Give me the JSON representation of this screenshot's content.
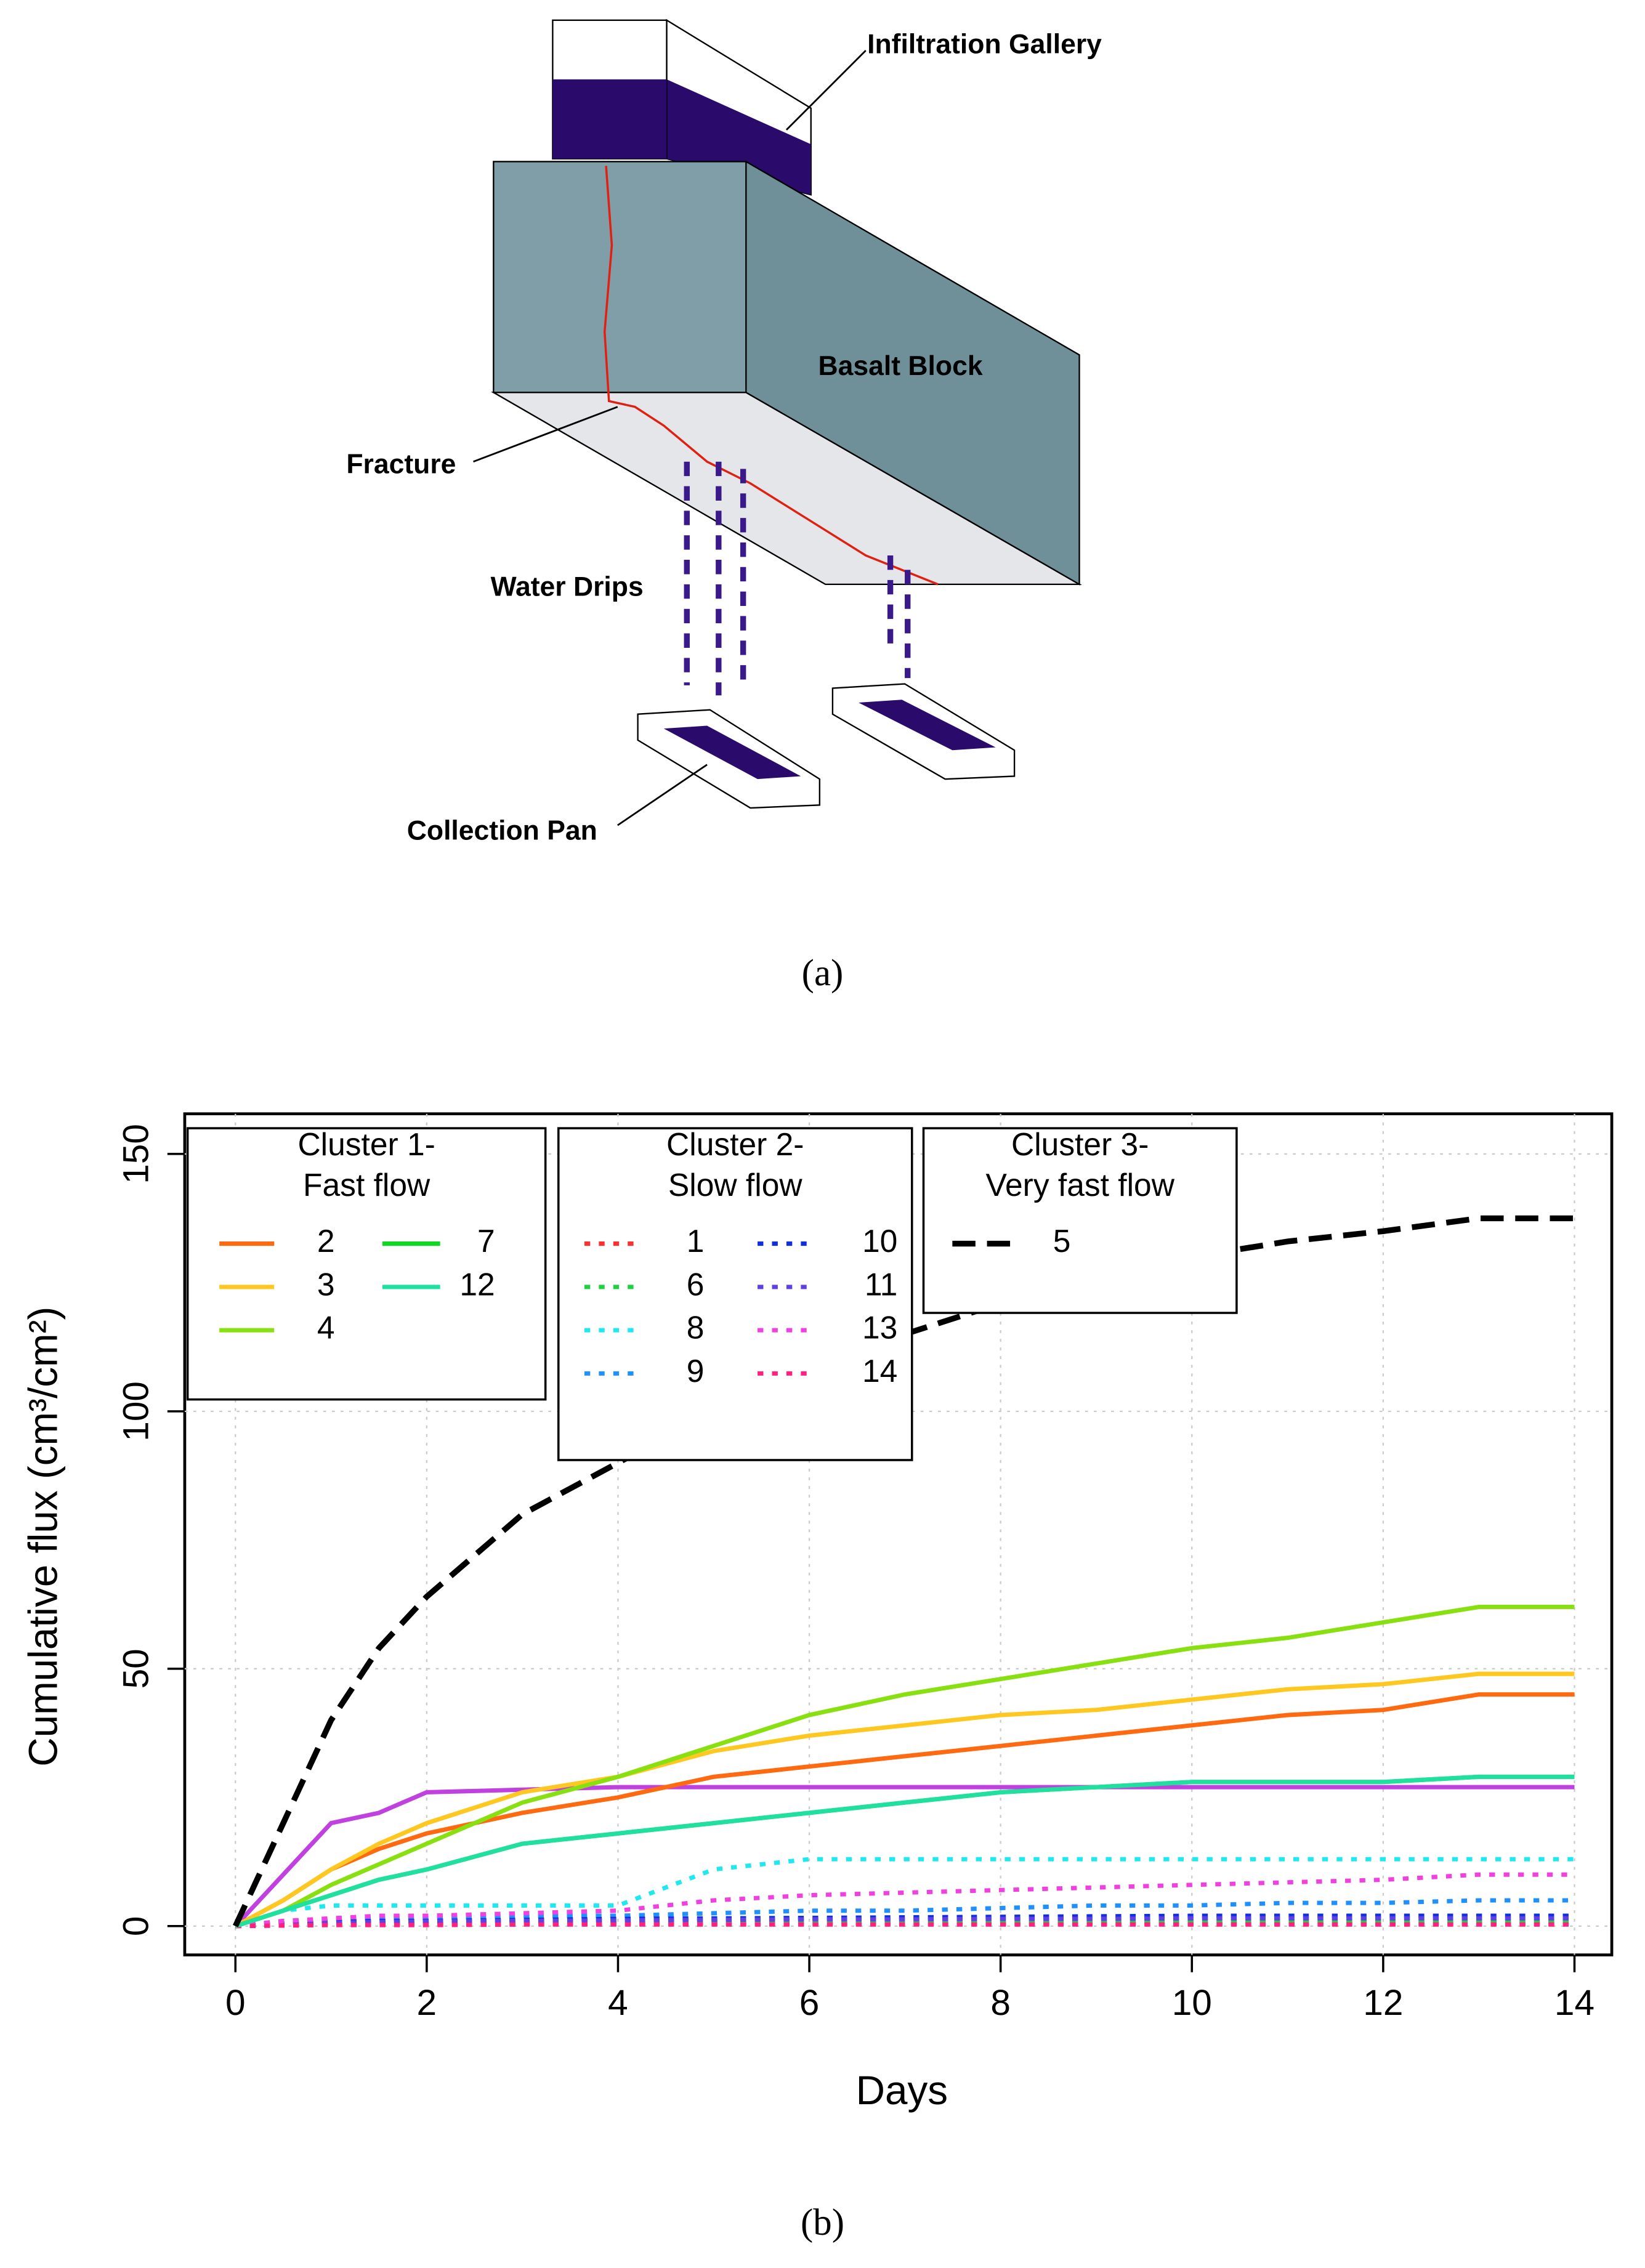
{
  "diagram": {
    "labels": [
      "Infiltration Gallery",
      "Basalt Block",
      "Fracture",
      "Water Drips",
      "Collection Pan"
    ],
    "caption": "(a)"
  },
  "chart_data": {
    "type": "line",
    "caption": "(b)",
    "xlabel": "Days",
    "ylabel": "Cumulative flux (cm³/cm²)",
    "x": [
      0,
      0.5,
      1,
      1.5,
      2,
      3,
      4,
      5,
      6,
      7,
      8,
      9,
      10,
      11,
      12,
      13,
      14
    ],
    "xlim": [
      -0.53,
      14.39
    ],
    "ylim": [
      -5.6,
      157.8
    ],
    "xticks": [
      0,
      2,
      4,
      6,
      8,
      10,
      12,
      14
    ],
    "yticks": [
      0,
      50,
      100,
      150
    ],
    "grid": true,
    "groups": [
      {
        "title": [
          "Cluster 1-",
          "Fast flow"
        ],
        "series": [
          {
            "name": "2",
            "color": "#ff6a10",
            "style": "solid",
            "values": [
              0,
              5,
              11,
              15,
              18,
              22,
              25,
              29,
              31,
              33,
              35,
              37,
              39,
              41,
              42,
              45,
              45
            ]
          },
          {
            "name": "3",
            "color": "#ffc820",
            "style": "solid",
            "values": [
              0,
              5,
              11,
              16,
              20,
              26,
              29,
              34,
              37,
              39,
              41,
              42,
              44,
              46,
              47,
              49,
              49
            ]
          },
          {
            "name": "4",
            "color": "#88e010",
            "style": "solid",
            "values": [
              0,
              3,
              8,
              12,
              16,
              24,
              29,
              35,
              41,
              45,
              48,
              51,
              54,
              56,
              59,
              62,
              62
            ]
          },
          {
            "name": "7",
            "color": "#10d820",
            "style": "solid",
            "values": [
              0,
              3,
              6,
              9,
              11,
              16,
              18,
              20,
              22,
              24,
              26,
              27,
              28,
              28,
              28,
              29,
              29
            ]
          },
          {
            "name": "12",
            "color": "#20e0a0",
            "style": "solid",
            "values": [
              0,
              3,
              6,
              9,
              11,
              16,
              18,
              20,
              22,
              24,
              26,
              27,
              28,
              28,
              28,
              29,
              29
            ]
          }
        ]
      },
      {
        "title": [
          "Cluster 2-",
          "Slow flow"
        ],
        "series": [
          {
            "name": "1",
            "color": "#ff3030",
            "style": "dotted",
            "values": [
              0,
              0.2,
              0.3,
              0.3,
              0.4,
              0.4,
              0.5,
              0.5,
              0.5,
              0.5,
              0.5,
              0.5,
              0.5,
              0.5,
              0.5,
              0.5,
              0.5
            ]
          },
          {
            "name": "6",
            "color": "#20d040",
            "style": "dotted",
            "values": [
              0,
              0.4,
              0.6,
              0.7,
              0.8,
              0.9,
              1,
              1,
              1,
              1,
              1,
              1,
              1,
              1,
              1,
              1,
              1
            ]
          },
          {
            "name": "8",
            "color": "#20e8f0",
            "style": "dotted",
            "values": [
              0,
              3,
              4,
              4,
              4,
              4,
              4,
              11,
              13,
              13,
              13,
              13,
              13,
              13,
              13,
              13,
              13
            ]
          },
          {
            "name": "9",
            "color": "#2090ff",
            "style": "dotted",
            "values": [
              0,
              1,
              1,
              1.5,
              1.5,
              2,
              2,
              2.5,
              3,
              3,
              3.5,
              4,
              4,
              4.5,
              4.5,
              5,
              5
            ]
          },
          {
            "name": "10",
            "color": "#1030e0",
            "style": "dotted",
            "values": [
              0,
              0.5,
              0.8,
              1,
              1,
              1.2,
              1.4,
              1.5,
              1.6,
              1.7,
              1.8,
              1.9,
              2,
              2,
              2,
              2,
              2
            ]
          },
          {
            "name": "11",
            "color": "#6040e0",
            "style": "dotted",
            "values": [
              0,
              0.4,
              0.6,
              0.8,
              0.9,
              1,
              1.1,
              1.2,
              1.3,
              1.3,
              1.4,
              1.4,
              1.5,
              1.5,
              1.5,
              1.5,
              1.5
            ]
          },
          {
            "name": "13",
            "color": "#f040e0",
            "style": "dotted",
            "values": [
              0,
              1,
              1.5,
              2,
              2,
              2.5,
              3,
              5,
              6,
              6.5,
              7,
              7.5,
              8,
              8.5,
              9,
              10,
              10
            ]
          },
          {
            "name": "14",
            "color": "#ff2080",
            "style": "dotted",
            "values": [
              0,
              0.1,
              0.2,
              0.2,
              0.2,
              0.3,
              0.3,
              0.3,
              0.3,
              0.3,
              0.3,
              0.3,
              0.3,
              0.3,
              0.3,
              0.3,
              0.3
            ]
          }
        ]
      },
      {
        "title": [
          "Cluster 3-",
          "Very fast flow"
        ],
        "series": [
          {
            "name": "5",
            "color": "#000000",
            "style": "dashed",
            "values": [
              0,
              20,
              40,
              54,
              64,
              80,
              90,
              100,
              110,
              115,
              121,
              126,
              130,
              133,
              135,
              137.5,
              137.5
            ]
          }
        ]
      }
    ],
    "series": [
      {
        "name": null,
        "color": "#c040e0",
        "style": "solid",
        "values": [
          0,
          10,
          20,
          22,
          26,
          26.5,
          27,
          27,
          27,
          27,
          27,
          27,
          27,
          27,
          27,
          27,
          27
        ]
      }
    ]
  }
}
